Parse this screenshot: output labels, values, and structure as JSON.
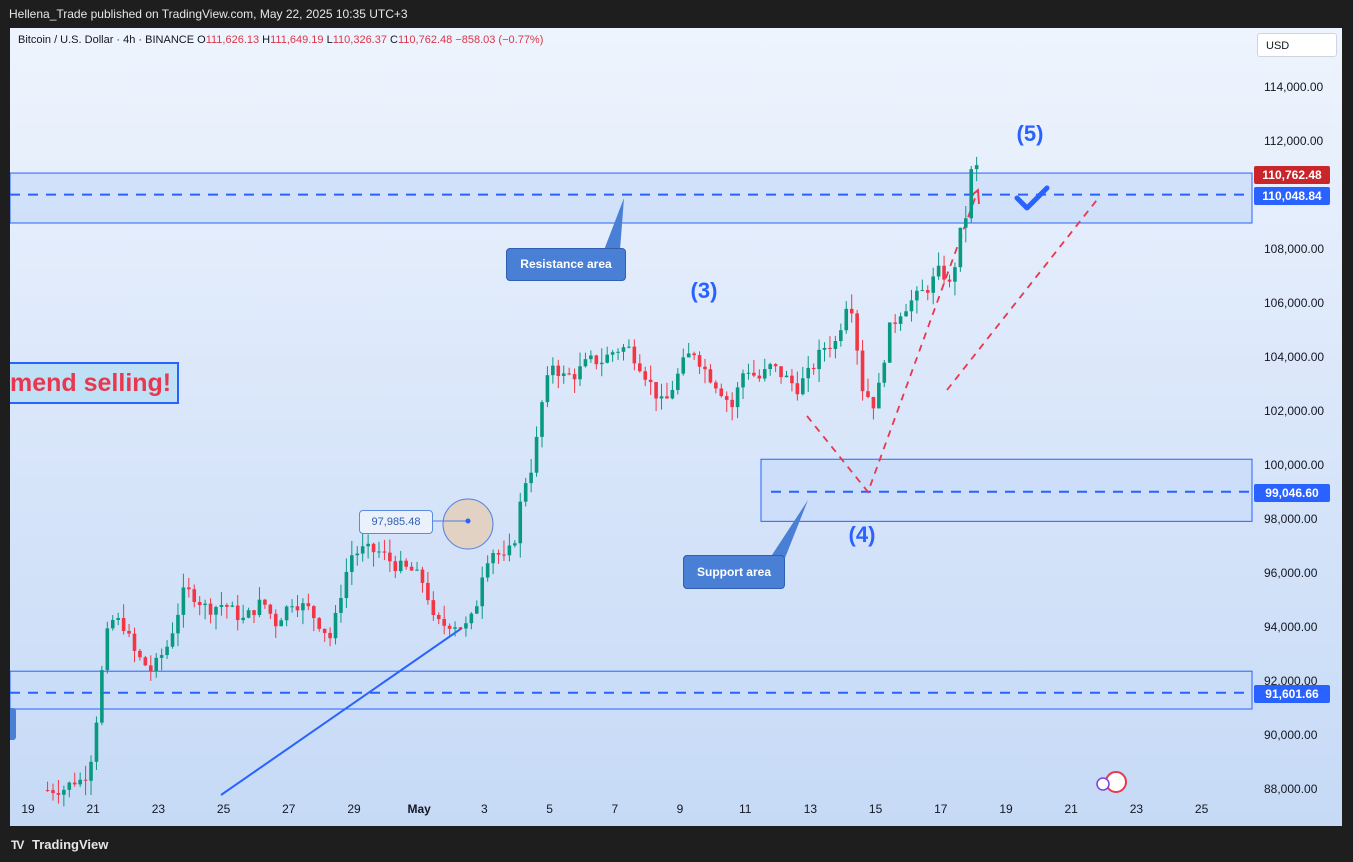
{
  "header": {
    "published_text": "Hellena_Trade published on TradingView.com, May 22, 2025 10:35 UTC+3"
  },
  "symbol": {
    "name": "Bitcoin / U.S. Dollar · 4h · BINANCE",
    "open_label": "O",
    "open": "111,626.13",
    "high_label": "H",
    "high": "111,649.19",
    "low_label": "L",
    "low": "110,326.37",
    "close_label": "C",
    "close": "110,762.48",
    "change": "−858.03 (−0.77%)"
  },
  "currency_button": "USD",
  "footer": {
    "brand": "TradingView",
    "logo": "TV"
  },
  "annotations": {
    "recommend_text": "mend selling!",
    "resistance_label": "Resistance area",
    "support_label": "Support area",
    "price_bubble": "97,985.48",
    "wave_3": "(3)",
    "wave_4": "(4)",
    "wave_5": "(5)"
  },
  "price_tags": {
    "last": "110,762.48",
    "resistance_line": "110,048.84",
    "support_line": "99,046.60",
    "lower_line": "91,601.66"
  },
  "colors": {
    "up": "#089981",
    "down": "#f23645",
    "accent": "#2962ff",
    "zone": "#c8dcf8"
  },
  "chart_data": {
    "type": "candlestick",
    "timeframe": "4h",
    "y_ticks": [
      "114,000.00",
      "112,000.00",
      "108,000.00",
      "106,000.00",
      "104,000.00",
      "102,000.00",
      "100,000.00",
      "98,000.00",
      "96,000.00",
      "94,000.00",
      "92,000.00",
      "90,000.00",
      "88,000.00"
    ],
    "x_ticks": [
      "19",
      "21",
      "23",
      "25",
      "27",
      "29",
      "May",
      "3",
      "5",
      "7",
      "9",
      "11",
      "13",
      "15",
      "17",
      "19",
      "21",
      "23",
      "25"
    ],
    "zones": [
      {
        "name": "Resistance area",
        "low": 109000,
        "high": 110850,
        "line": 110048.84
      },
      {
        "name": "Support area",
        "low": 97950,
        "high": 100250,
        "line": 99046.6
      },
      {
        "name": "lower",
        "low": 91000,
        "high": 92400,
        "line": 91601.66
      }
    ],
    "waves": [
      {
        "label": "(3)",
        "x_day": 10.9,
        "price": 106300
      },
      {
        "label": "(4)",
        "x_day": 14.6,
        "price": 97500
      },
      {
        "label": "(5)",
        "x_day": 20.8,
        "price": 112300
      }
    ],
    "anchor_points": [
      [
        -1.4,
        88000
      ],
      [
        -0.9,
        88050
      ],
      [
        -0.5,
        88400
      ],
      [
        -0.3,
        88300
      ],
      [
        0,
        89500
      ],
      [
        0.2,
        91800
      ],
      [
        0.5,
        94300
      ],
      [
        0.9,
        94200
      ],
      [
        1.3,
        93000
      ],
      [
        1.8,
        92400
      ],
      [
        2.3,
        93400
      ],
      [
        2.8,
        95400
      ],
      [
        3.1,
        95200
      ],
      [
        3.5,
        94700
      ],
      [
        4.0,
        94900
      ],
      [
        4.6,
        94300
      ],
      [
        5.2,
        95000
      ],
      [
        5.6,
        94200
      ],
      [
        6.1,
        95000
      ],
      [
        6.6,
        94700
      ],
      [
        7.3,
        93600
      ],
      [
        7.6,
        95300
      ],
      [
        7.9,
        96700
      ],
      [
        8.3,
        96900
      ],
      [
        8.8,
        96800
      ],
      [
        9.3,
        96300
      ],
      [
        9.8,
        96100
      ],
      [
        10.2,
        95600
      ],
      [
        10.4,
        94300
      ],
      [
        10.7,
        94100
      ],
      [
        11.0,
        94200
      ],
      [
        11.4,
        94000
      ],
      [
        11.7,
        94500
      ],
      [
        12.0,
        96500
      ],
      [
        12.3,
        96900
      ],
      [
        12.6,
        96500
      ],
      [
        12.9,
        97100
      ],
      [
        13.2,
        99300
      ],
      [
        13.5,
        100100
      ],
      [
        13.8,
        102600
      ],
      [
        14.1,
        103800
      ],
      [
        14.4,
        103300
      ],
      [
        14.8,
        103400
      ],
      [
        15.2,
        103900
      ],
      [
        15.6,
        103900
      ],
      [
        16.0,
        104300
      ],
      [
        16.4,
        104400
      ],
      [
        16.8,
        103700
      ],
      [
        17.2,
        102800
      ],
      [
        17.5,
        102200
      ],
      [
        17.8,
        103000
      ],
      [
        18.1,
        103800
      ],
      [
        18.4,
        104300
      ],
      [
        18.8,
        103500
      ],
      [
        19.2,
        102900
      ],
      [
        19.6,
        102200
      ],
      [
        20.0,
        103700
      ],
      [
        20.4,
        103200
      ],
      [
        20.8,
        103700
      ],
      [
        21.2,
        103300
      ],
      [
        21.6,
        102900
      ],
      [
        22.0,
        103500
      ],
      [
        22.4,
        104400
      ],
      [
        22.8,
        104600
      ],
      [
        23.2,
        106500
      ],
      [
        23.6,
        102900
      ],
      [
        24.0,
        102200
      ],
      [
        24.4,
        105000
      ],
      [
        24.8,
        105800
      ],
      [
        25.2,
        106200
      ],
      [
        25.6,
        106600
      ],
      [
        26.0,
        107300
      ],
      [
        26.3,
        106600
      ],
      [
        26.6,
        108600
      ],
      [
        26.8,
        109400
      ],
      [
        27.0,
        111600
      ],
      [
        27.15,
        110760
      ]
    ]
  }
}
